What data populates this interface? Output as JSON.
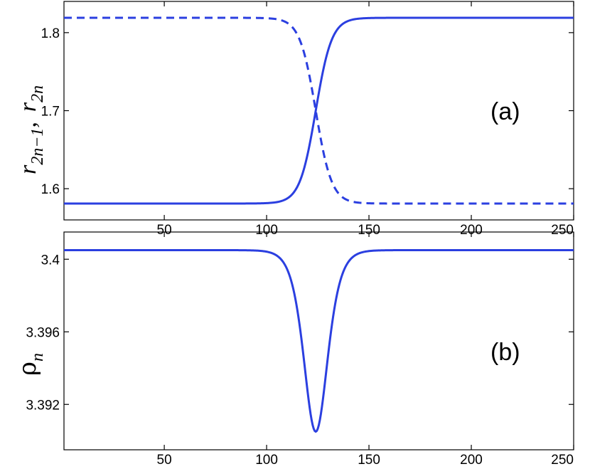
{
  "chart_data": [
    {
      "type": "line",
      "panel_label": "(a)",
      "ylabel": {
        "main1": "r",
        "sub1": "2n−1",
        "sep": ",",
        "main2": "r",
        "sub2": "2n"
      },
      "xlim": [
        1,
        250
      ],
      "ylim": [
        1.56,
        1.84
      ],
      "xticks": [
        50,
        100,
        150,
        200,
        250
      ],
      "yticks": [
        1.6,
        1.7,
        1.8
      ],
      "series": [
        {
          "style": "solid",
          "color": "#2b3fe0",
          "kind": "rising_kink",
          "low": 1.581,
          "high": 1.819,
          "center": 124,
          "width": 7.8
        },
        {
          "style": "dashed",
          "color": "#2b3fe0",
          "kind": "falling_kink",
          "low": 1.581,
          "high": 1.819,
          "center": 124,
          "width": 7.8
        }
      ]
    },
    {
      "type": "line",
      "panel_label": "(b)",
      "ylabel": {
        "main": "ρ",
        "sub": "n"
      },
      "xlim": [
        1,
        250
      ],
      "ylim": [
        3.3895,
        3.4015
      ],
      "xticks": [
        50,
        100,
        150,
        200,
        250
      ],
      "yticks": [
        3.392,
        3.396,
        3.4
      ],
      "series": [
        {
          "style": "solid",
          "color": "#2b3fe0",
          "kind": "dip",
          "baseline": 3.4005,
          "minimum": 3.3905,
          "center": 124,
          "width": 7.8
        }
      ]
    }
  ]
}
